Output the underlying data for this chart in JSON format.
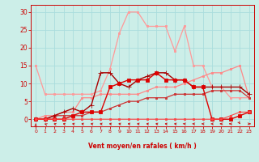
{
  "background_color": "#cceee8",
  "grid_color": "#aadddd",
  "x_label": "Vent moyen/en rafales ( km/h )",
  "x_ticks": [
    0,
    1,
    2,
    3,
    4,
    5,
    6,
    7,
    8,
    9,
    10,
    11,
    12,
    13,
    14,
    15,
    16,
    17,
    18,
    19,
    20,
    21,
    22,
    23
  ],
  "y_ticks": [
    0,
    5,
    10,
    15,
    20,
    25,
    30
  ],
  "ylim": [
    -2,
    32
  ],
  "xlim": [
    -0.5,
    23.5
  ],
  "series": [
    {
      "x": [
        0,
        1,
        2,
        3,
        4,
        5,
        6,
        7,
        8,
        9,
        10,
        11,
        12,
        13,
        14,
        15,
        16,
        17,
        18,
        19,
        20,
        21,
        22,
        23
      ],
      "y": [
        15,
        7,
        7,
        7,
        7,
        7,
        7,
        8,
        14,
        24,
        30,
        30,
        26,
        26,
        26,
        19,
        26,
        15,
        15,
        9,
        9,
        6,
        6,
        6
      ],
      "color": "#ff9999",
      "linewidth": 0.9,
      "marker": "s",
      "markersize": 2.0
    },
    {
      "x": [
        0,
        1,
        2,
        3,
        4,
        5,
        6,
        7,
        8,
        9,
        10,
        11,
        12,
        13,
        14,
        15,
        16,
        17,
        18,
        19,
        20,
        21,
        22,
        23
      ],
      "y": [
        0,
        1,
        1,
        2,
        2,
        6,
        6,
        7,
        7,
        7,
        7,
        7,
        8,
        9,
        9,
        9,
        10,
        11,
        12,
        13,
        13,
        14,
        15,
        6
      ],
      "color": "#ff8888",
      "linewidth": 0.9,
      "marker": "s",
      "markersize": 2.0
    },
    {
      "x": [
        0,
        1,
        2,
        3,
        4,
        5,
        6,
        7,
        8,
        9,
        10,
        11,
        12,
        13,
        14,
        15,
        16,
        17,
        18,
        19,
        20,
        21,
        22,
        23
      ],
      "y": [
        0,
        0,
        1,
        1,
        1,
        1,
        2,
        2,
        3,
        4,
        5,
        5,
        6,
        6,
        6,
        7,
        7,
        7,
        7,
        8,
        8,
        8,
        8,
        6
      ],
      "color": "#cc3333",
      "linewidth": 0.9,
      "marker": "s",
      "markersize": 2.0
    },
    {
      "x": [
        0,
        1,
        2,
        3,
        4,
        5,
        6,
        7,
        8,
        9,
        10,
        11,
        12,
        13,
        14,
        15,
        16,
        17,
        18,
        19,
        20,
        21,
        22,
        23
      ],
      "y": [
        0,
        0,
        1,
        2,
        3,
        2,
        4,
        13,
        13,
        10,
        9,
        11,
        12,
        13,
        13,
        11,
        11,
        9,
        9,
        9,
        9,
        9,
        9,
        7
      ],
      "color": "#aa0000",
      "linewidth": 1.0,
      "marker": "+",
      "markersize": 4.0
    },
    {
      "x": [
        0,
        1,
        2,
        3,
        4,
        5,
        6,
        7,
        8,
        9,
        10,
        11,
        12,
        13,
        14,
        15,
        16,
        17,
        18,
        19,
        20,
        21,
        22,
        23
      ],
      "y": [
        0,
        0,
        0,
        0,
        1,
        2,
        2,
        2,
        9,
        10,
        11,
        11,
        11,
        13,
        11,
        11,
        11,
        9,
        9,
        0,
        0,
        0,
        1,
        2
      ],
      "color": "#dd0000",
      "linewidth": 1.0,
      "marker": "s",
      "markersize": 2.5
    },
    {
      "x": [
        0,
        1,
        2,
        3,
        4,
        5,
        6,
        7,
        8,
        9,
        10,
        11,
        12,
        13,
        14,
        15,
        16,
        17,
        18,
        19,
        20,
        21,
        22,
        23
      ],
      "y": [
        0,
        0,
        0,
        0,
        0,
        0,
        0,
        0,
        0,
        0,
        0,
        0,
        0,
        0,
        0,
        0,
        0,
        0,
        0,
        0,
        0,
        1,
        2,
        2
      ],
      "color": "#ff4444",
      "linewidth": 0.8,
      "marker": "s",
      "markersize": 1.8
    }
  ],
  "arrow_color": "#cc0000",
  "arrow_angles_deg": [
    180,
    200,
    215,
    220,
    225,
    230,
    230,
    235,
    235,
    235,
    235,
    235,
    235,
    235,
    235,
    235,
    240,
    250,
    255,
    265,
    270,
    270,
    5,
    90
  ]
}
